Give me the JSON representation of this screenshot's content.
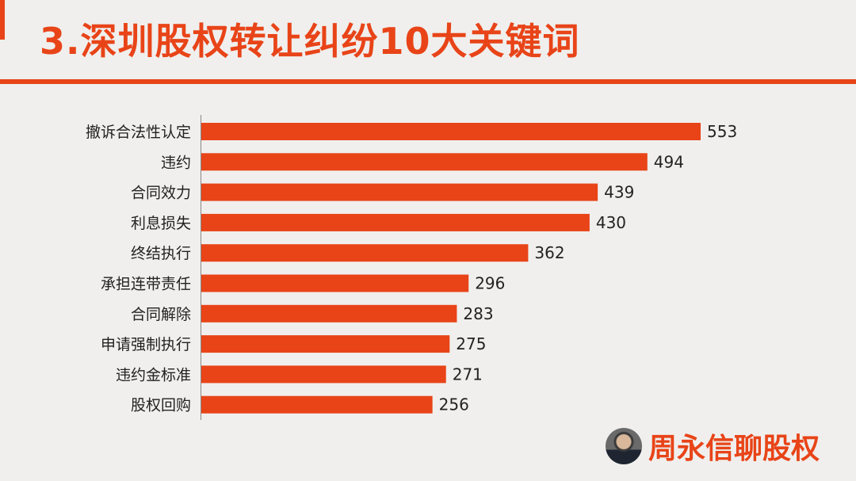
{
  "title": "3.深圳股权转让纠纷10大关键词",
  "brand": {
    "name": "周永信聊股权"
  },
  "colors": {
    "accent": "#e84418",
    "background": "#f0efed",
    "bar": "#e84418"
  },
  "chart_data": {
    "type": "bar",
    "orientation": "horizontal",
    "categories": [
      "撤诉合法性认定",
      "违约",
      "合同效力",
      "利息损失",
      "终结执行",
      "承担连带责任",
      "合同解除",
      "申请强制执行",
      "违约金标准",
      "股权回购"
    ],
    "values": [
      553,
      494,
      439,
      430,
      362,
      296,
      283,
      275,
      271,
      256
    ],
    "title": "3.深圳股权转让纠纷10大关键词",
    "xlabel": "",
    "ylabel": "",
    "xlim": [
      0,
      553
    ],
    "grid": false,
    "data_labels": true
  }
}
